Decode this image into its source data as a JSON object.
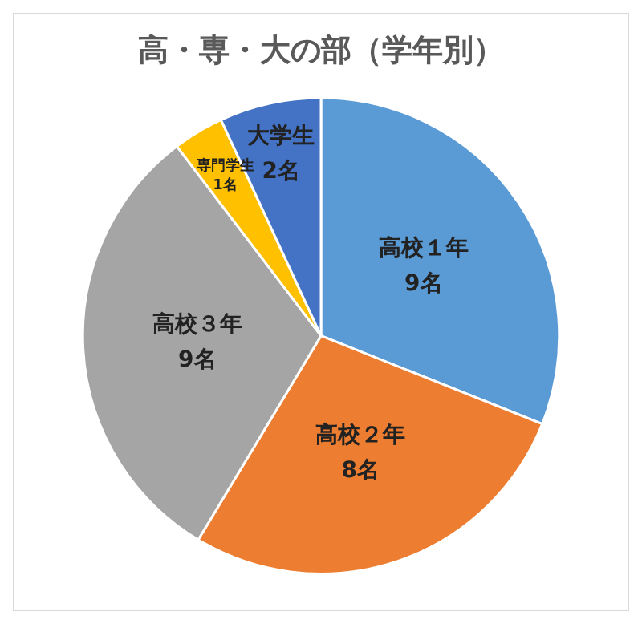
{
  "chart_data": {
    "type": "pie",
    "title": "高・専・大の部（学年別）",
    "categories": [
      "高校１年",
      "高校２年",
      "高校３年",
      "専門学生",
      "大学生"
    ],
    "values": [
      9,
      8,
      9,
      1,
      2
    ],
    "value_labels": [
      "9名",
      "8名",
      "9名",
      "1名",
      "2名"
    ],
    "colors": [
      "#5b9bd5",
      "#ed7d31",
      "#a5a5a5",
      "#ffc000",
      "#4472c4"
    ],
    "legend": false
  }
}
